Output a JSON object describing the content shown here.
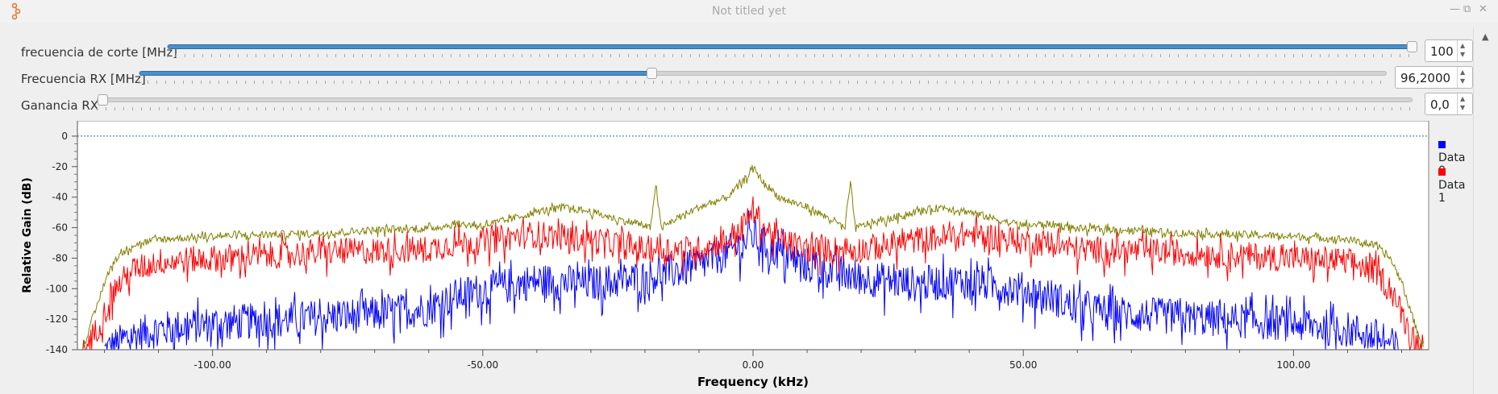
{
  "window": {
    "title": "Not titled yet",
    "app_icon": "gnuradio-app-icon",
    "controls": [
      "minimize-icon",
      "restore-icon",
      "close-icon"
    ]
  },
  "controls": {
    "cutoff": {
      "label": "frecuencia de corte [MHz]",
      "value": "100",
      "fraction": 1.0
    },
    "rx_freq": {
      "label": "Frecuencia RX [MHz]",
      "value": "96,2000",
      "fraction": 0.41
    },
    "rx_gain": {
      "label": "Ganancia RX",
      "value": "0,0",
      "fraction": 0.0
    }
  },
  "colors": {
    "slider_fill": "#4b8fc9",
    "data0": "#0000ff",
    "data1": "#ff0000",
    "data2": "#808000",
    "reference_line": "#1f7a8c"
  },
  "chart_data": {
    "type": "line",
    "xlabel": "Frequency (kHz)",
    "ylabel": "Relative Gain (dB)",
    "xlim": [
      -125,
      125
    ],
    "ylim": [
      -140,
      10
    ],
    "x_ticks": [
      -100,
      -50,
      0,
      50,
      100
    ],
    "x_tick_labels": [
      "-100.00",
      "-50.00",
      "0.00",
      "50.00",
      "100.00"
    ],
    "y_ticks": [
      0,
      -20,
      -40,
      -60,
      -80,
      -100,
      -120,
      -140
    ],
    "y_tick_labels": [
      "0",
      "-20",
      "-40",
      "-60",
      "-80",
      "-100",
      "-120",
      "-140"
    ],
    "legend_position": "right",
    "legend": [
      {
        "name": "Data 0",
        "color": "#0000ff"
      },
      {
        "name": "Data 1",
        "color": "#ff0000"
      }
    ],
    "reference_line_y": 0,
    "series": [
      {
        "name": "Data 0",
        "color": "#0000ff",
        "noise": 12,
        "x": [
          -120,
          -115,
          -110,
          -100,
          -90,
          -80,
          -70,
          -60,
          -55,
          -50,
          -45,
          -40,
          -30,
          -20,
          -10,
          -5,
          -2,
          0,
          2,
          5,
          10,
          20,
          30,
          40,
          45,
          50,
          55,
          60,
          70,
          80,
          90,
          100,
          110,
          115,
          120
        ],
        "y": [
          -138,
          -128,
          -124,
          -120,
          -118,
          -116,
          -114,
          -110,
          -102,
          -98,
          -95,
          -92,
          -94,
          -90,
          -82,
          -74,
          -68,
          -62,
          -68,
          -74,
          -82,
          -90,
          -94,
          -92,
          -95,
          -98,
          -102,
          -110,
          -114,
          -116,
          -118,
          -120,
          -124,
          -128,
          -138
        ]
      },
      {
        "name": "Data 1",
        "color": "#ff0000",
        "noise": 9,
        "x": [
          -124,
          -121,
          -118,
          -115,
          -110,
          -100,
          -90,
          -80,
          -70,
          -60,
          -55,
          -50,
          -45,
          -40,
          -30,
          -20,
          -10,
          -5,
          -2,
          0,
          2,
          5,
          10,
          20,
          30,
          40,
          45,
          50,
          55,
          60,
          70,
          80,
          90,
          100,
          110,
          115,
          118,
          121,
          124
        ],
        "y": [
          -140,
          -122,
          -98,
          -86,
          -80,
          -78,
          -76,
          -74,
          -73,
          -72,
          -68,
          -67,
          -64,
          -62,
          -66,
          -72,
          -72,
          -66,
          -58,
          -46,
          -58,
          -66,
          -72,
          -72,
          -66,
          -62,
          -64,
          -67,
          -68,
          -72,
          -73,
          -74,
          -76,
          -78,
          -80,
          -86,
          -98,
          -122,
          -140
        ]
      },
      {
        "name": "",
        "color": "#808000",
        "noise": 2.5,
        "x": [
          -124,
          -122,
          -120,
          -118,
          -115,
          -110,
          -100,
          -90,
          -80,
          -70,
          -60,
          -55,
          -50,
          -45,
          -40,
          -35,
          -30,
          -25,
          -21,
          -19,
          -18,
          -17,
          -15,
          -10,
          -5,
          -2,
          0,
          2,
          5,
          10,
          15,
          17,
          18,
          19,
          21,
          25,
          30,
          35,
          40,
          45,
          50,
          55,
          60,
          70,
          80,
          90,
          100,
          110,
          115,
          118,
          120,
          122,
          124
        ],
        "y": [
          -138,
          -118,
          -95,
          -80,
          -71,
          -67,
          -65,
          -64,
          -63,
          -61,
          -60,
          -57,
          -58,
          -54,
          -49,
          -46,
          -49,
          -54,
          -57,
          -60,
          -30,
          -60,
          -55,
          -46,
          -40,
          -30,
          -20,
          -30,
          -40,
          -46,
          -55,
          -60,
          -30,
          -60,
          -57,
          -54,
          -49,
          -46,
          -49,
          -54,
          -58,
          -57,
          -60,
          -61,
          -63,
          -64,
          -65,
          -67,
          -71,
          -80,
          -95,
          -118,
          -138
        ]
      }
    ]
  }
}
